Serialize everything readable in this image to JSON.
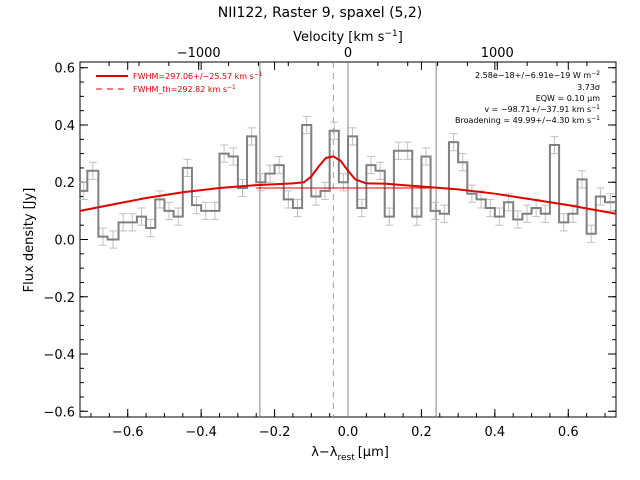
{
  "chart_data": {
    "type": "line",
    "title": "NII122, Raster 9, spaxel (5,2)",
    "xlabel": "λ−λ",
    "xlabel_sub": "rest",
    "xlabel_unit": "[μm]",
    "ylabel": "Flux density [Jy]",
    "top_axis_label": "Velocity [km s",
    "top_axis_label_sup": "−1",
    "top_axis_label_end": "]",
    "xlim": [
      -0.73,
      0.73
    ],
    "ylim": [
      -0.62,
      0.62
    ],
    "x_ticks": [
      -0.6,
      -0.4,
      -0.2,
      0.0,
      0.2,
      0.4,
      0.6
    ],
    "x_tick_labels": [
      "−0.6",
      "−0.4",
      "−0.2",
      "0.0",
      "0.2",
      "0.4",
      "0.6"
    ],
    "y_ticks": [
      -0.6,
      -0.4,
      -0.2,
      0.0,
      0.2,
      0.4,
      0.6
    ],
    "y_tick_labels": [
      "−0.6",
      "−0.4",
      "−0.2",
      "0.0",
      "0.2",
      "0.4",
      "0.6"
    ],
    "top_ticks_velocity": [
      -1000,
      0,
      1000
    ],
    "top_tick_labels": [
      "−1000",
      "0",
      "1000"
    ],
    "rest_wavelength_um": 121.9,
    "vertical_lines": [
      -0.24,
      0.0,
      0.24
    ],
    "dashed_line_x": -0.04,
    "legend": {
      "position": "top-left",
      "entries": [
        {
          "label": "FWHM=297.06+/−25.57 km s",
          "sup": "−1",
          "style": "solid"
        },
        {
          "label": "FWHM_th=292.82 km s",
          "sup": "−1",
          "style": "dashed"
        }
      ]
    },
    "annotations": [
      {
        "text": "2.58e−18+/−6.91e−19 W m",
        "sup": "−2"
      },
      {
        "text": "3.73σ",
        "sup": ""
      },
      {
        "text": "EQW = 0.10 μm",
        "sup": ""
      },
      {
        "text": "v = −98.71+/−37.91 km s",
        "sup": "−1"
      },
      {
        "text": "Broadening = 49.99+/−4.30 km s",
        "sup": "−1"
      }
    ],
    "series": [
      {
        "style": "step",
        "color": "#808080",
        "bin_edges": [
          -0.73,
          -0.71,
          -0.68,
          -0.655,
          -0.625,
          -0.6,
          -0.575,
          -0.55,
          -0.525,
          -0.5,
          -0.475,
          -0.45,
          -0.425,
          -0.4,
          -0.375,
          -0.35,
          -0.325,
          -0.3,
          -0.275,
          -0.25,
          -0.225,
          -0.2,
          -0.175,
          -0.15,
          -0.125,
          -0.1,
          -0.075,
          -0.05,
          -0.025,
          0.0,
          0.025,
          0.05,
          0.075,
          0.1,
          0.125,
          0.15,
          0.175,
          0.2,
          0.225,
          0.25,
          0.275,
          0.3,
          0.325,
          0.35,
          0.375,
          0.4,
          0.425,
          0.45,
          0.475,
          0.5,
          0.525,
          0.55,
          0.575,
          0.6,
          0.625,
          0.65,
          0.675,
          0.7,
          0.73
        ],
        "values": [
          0.17,
          0.24,
          0.01,
          0.0,
          0.06,
          0.06,
          0.08,
          0.04,
          0.14,
          0.1,
          0.08,
          0.25,
          0.12,
          0.1,
          0.1,
          0.3,
          0.29,
          0.18,
          0.36,
          0.2,
          0.23,
          0.26,
          0.14,
          0.11,
          0.4,
          0.15,
          0.17,
          0.38,
          0.2,
          0.36,
          0.11,
          0.26,
          0.24,
          0.08,
          0.31,
          0.31,
          0.08,
          0.29,
          0.1,
          0.09,
          0.34,
          0.27,
          0.16,
          0.14,
          0.11,
          0.08,
          0.13,
          0.07,
          0.09,
          0.11,
          0.09,
          0.33,
          0.06,
          0.09,
          0.21,
          0.02,
          0.15,
          0.13
        ],
        "errors": [
          0.03,
          0.03,
          0.03,
          0.03,
          0.03,
          0.03,
          0.03,
          0.03,
          0.03,
          0.03,
          0.03,
          0.03,
          0.03,
          0.03,
          0.03,
          0.03,
          0.03,
          0.03,
          0.03,
          0.03,
          0.03,
          0.03,
          0.03,
          0.03,
          0.03,
          0.03,
          0.03,
          0.03,
          0.03,
          0.03,
          0.03,
          0.03,
          0.03,
          0.03,
          0.03,
          0.03,
          0.03,
          0.03,
          0.03,
          0.03,
          0.03,
          0.03,
          0.03,
          0.03,
          0.03,
          0.03,
          0.03,
          0.03,
          0.03,
          0.03,
          0.03,
          0.03,
          0.03,
          0.03,
          0.03,
          0.03,
          0.03,
          0.03
        ]
      },
      {
        "style": "line",
        "color": "#e00000",
        "x": [
          -0.73,
          -0.65,
          -0.55,
          -0.45,
          -0.35,
          -0.25,
          -0.2,
          -0.15,
          -0.12,
          -0.1,
          -0.08,
          -0.06,
          -0.04,
          -0.02,
          0.0,
          0.02,
          0.05,
          0.1,
          0.15,
          0.2,
          0.3,
          0.4,
          0.5,
          0.6,
          0.73
        ],
        "y": [
          0.1,
          0.12,
          0.145,
          0.165,
          0.18,
          0.19,
          0.193,
          0.196,
          0.2,
          0.22,
          0.255,
          0.285,
          0.29,
          0.275,
          0.24,
          0.21,
          0.196,
          0.195,
          0.19,
          0.185,
          0.175,
          0.16,
          0.14,
          0.12,
          0.09
        ]
      },
      {
        "style": "line",
        "color": "#e00000",
        "x": [
          -0.25,
          0.25
        ],
        "y": [
          0.18,
          0.18
        ]
      }
    ]
  }
}
